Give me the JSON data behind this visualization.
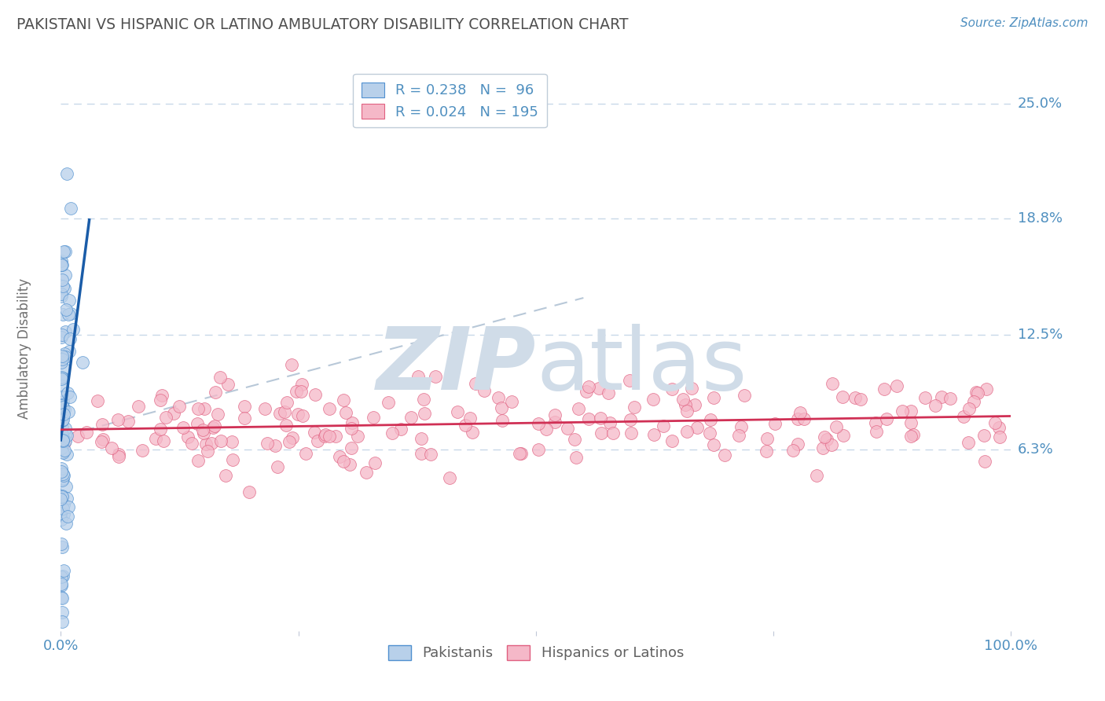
{
  "title": "PAKISTANI VS HISPANIC OR LATINO AMBULATORY DISABILITY CORRELATION CHART",
  "source_text": "Source: ZipAtlas.com",
  "ylabel": "Ambulatory Disability",
  "xlim": [
    0.0,
    100.0
  ],
  "ylim": [
    -3.5,
    27.0
  ],
  "yticks": [
    6.3,
    12.5,
    18.8,
    25.0
  ],
  "ytick_labels": [
    "6.3%",
    "12.5%",
    "18.8%",
    "25.0%"
  ],
  "blue_R": 0.238,
  "blue_N": 96,
  "pink_R": 0.024,
  "pink_N": 195,
  "blue_fill_color": "#b8d0ea",
  "pink_fill_color": "#f5b8c8",
  "blue_edge_color": "#5090d0",
  "pink_edge_color": "#e06080",
  "blue_line_color": "#1a5ca8",
  "pink_line_color": "#d03055",
  "ref_line_color": "#b8c8d8",
  "grid_color": "#c8d8e8",
  "text_color": "#5090c0",
  "title_color": "#505050",
  "background_color": "#ffffff",
  "watermark_color": "#d0dce8",
  "legend_label_blue": "Pakistanis",
  "legend_label_pink": "Hispanics or Latinos"
}
